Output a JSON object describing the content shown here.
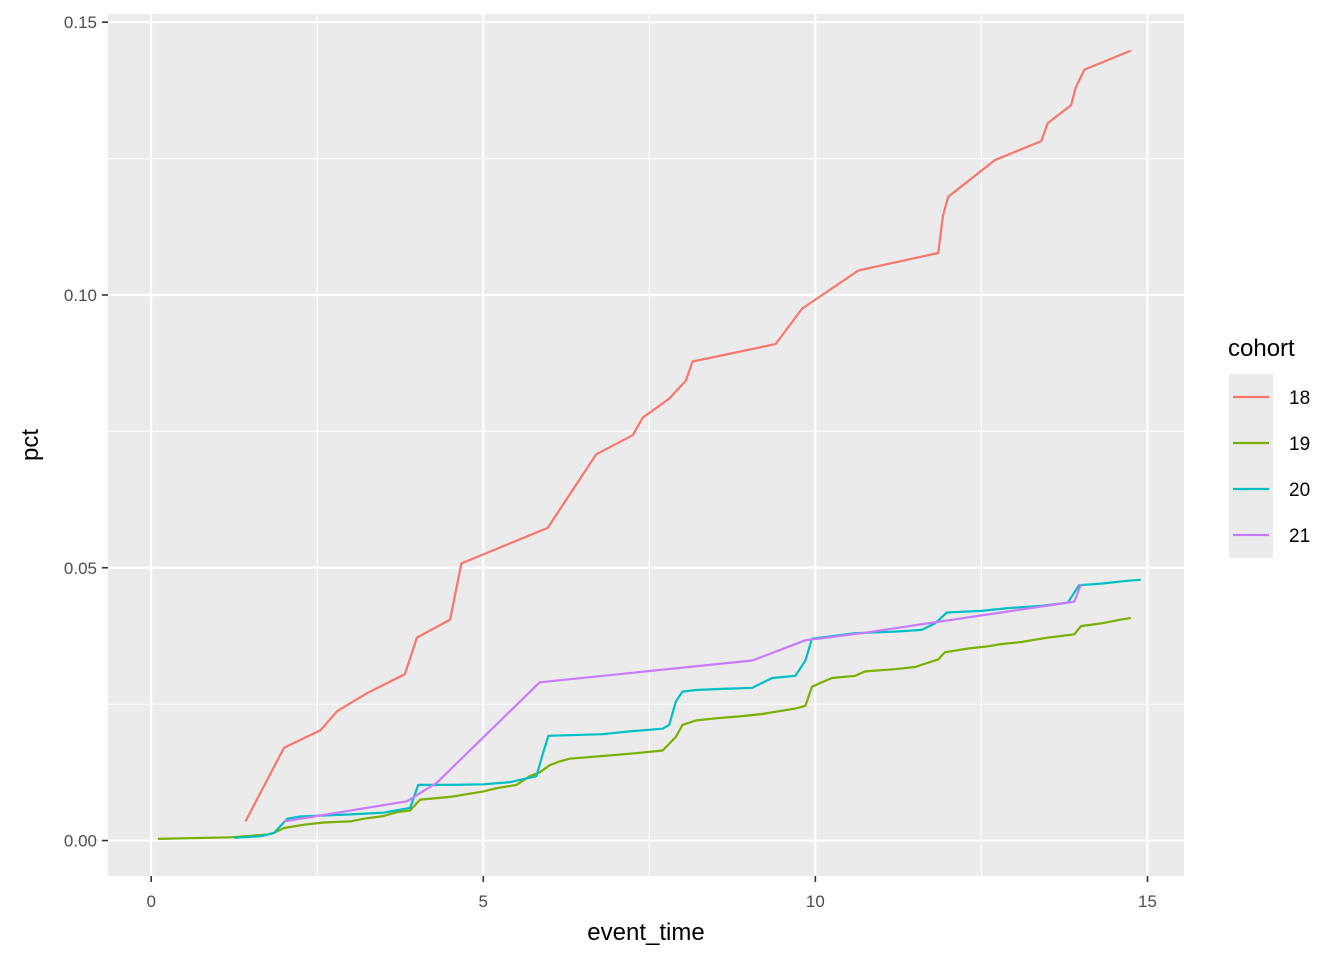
{
  "chart_data": {
    "type": "line",
    "xlabel": "event_time",
    "ylabel": "pct",
    "xlim": [
      -0.65,
      15.55
    ],
    "ylim": [
      -0.0065,
      0.1515
    ],
    "x_breaks": [
      0,
      5,
      10,
      15
    ],
    "x_tick_labels": [
      "0",
      "5",
      "10",
      "15"
    ],
    "x_minor_breaks": [
      2.5,
      7.5,
      12.5
    ],
    "y_breaks": [
      0,
      0.05,
      0.1,
      0.15
    ],
    "y_tick_labels": [
      "0.00",
      "0.05",
      "0.10",
      "0.15"
    ],
    "y_minor_breaks": [
      0.025,
      0.075,
      0.125
    ],
    "grid": true,
    "legend": {
      "title": "cohort",
      "placement": "right"
    },
    "series": [
      {
        "name": "18",
        "color": "#F8766D",
        "points": [
          [
            1.42,
            0.0035
          ],
          [
            2.0,
            0.017
          ],
          [
            2.55,
            0.0202
          ],
          [
            2.8,
            0.0237
          ],
          [
            3.25,
            0.027
          ],
          [
            3.82,
            0.0305
          ],
          [
            4.0,
            0.0372
          ],
          [
            4.5,
            0.0405
          ],
          [
            4.67,
            0.0508
          ],
          [
            5.97,
            0.0573
          ],
          [
            6.7,
            0.0708
          ],
          [
            7.25,
            0.0743
          ],
          [
            7.4,
            0.0775
          ],
          [
            7.8,
            0.081
          ],
          [
            8.05,
            0.0843
          ],
          [
            8.15,
            0.0878
          ],
          [
            9.4,
            0.091
          ],
          [
            9.8,
            0.0975
          ],
          [
            10.65,
            0.1045
          ],
          [
            11.85,
            0.1077
          ],
          [
            11.92,
            0.1145
          ],
          [
            12.0,
            0.118
          ],
          [
            12.7,
            0.1247
          ],
          [
            13.4,
            0.1282
          ],
          [
            13.5,
            0.1315
          ],
          [
            13.85,
            0.1348
          ],
          [
            13.92,
            0.138
          ],
          [
            14.05,
            0.1413
          ],
          [
            14.75,
            0.1448
          ]
        ]
      },
      {
        "name": "19",
        "color": "#7CAE00",
        "points": [
          [
            0.1,
            0.0003
          ],
          [
            1.2,
            0.0006
          ],
          [
            1.75,
            0.0011
          ],
          [
            1.85,
            0.0014
          ],
          [
            2.0,
            0.0023
          ],
          [
            2.3,
            0.0029
          ],
          [
            2.6,
            0.0033
          ],
          [
            3.0,
            0.0035
          ],
          [
            3.2,
            0.004
          ],
          [
            3.5,
            0.0045
          ],
          [
            3.7,
            0.0052
          ],
          [
            3.9,
            0.0055
          ],
          [
            3.95,
            0.0062
          ],
          [
            4.05,
            0.0075
          ],
          [
            4.5,
            0.008
          ],
          [
            4.75,
            0.0085
          ],
          [
            5.0,
            0.009
          ],
          [
            5.2,
            0.0096
          ],
          [
            5.5,
            0.0102
          ],
          [
            5.7,
            0.0118
          ],
          [
            5.85,
            0.0125
          ],
          [
            6.0,
            0.0138
          ],
          [
            6.15,
            0.0145
          ],
          [
            6.3,
            0.015
          ],
          [
            6.8,
            0.0155
          ],
          [
            7.3,
            0.016
          ],
          [
            7.7,
            0.0165
          ],
          [
            7.9,
            0.019
          ],
          [
            8.0,
            0.0212
          ],
          [
            8.2,
            0.022
          ],
          [
            8.5,
            0.0224
          ],
          [
            8.9,
            0.0228
          ],
          [
            9.2,
            0.0232
          ],
          [
            9.5,
            0.0238
          ],
          [
            9.7,
            0.0242
          ],
          [
            9.85,
            0.0247
          ],
          [
            9.95,
            0.0282
          ],
          [
            10.1,
            0.029
          ],
          [
            10.25,
            0.0298
          ],
          [
            10.6,
            0.0302
          ],
          [
            10.75,
            0.031
          ],
          [
            11.2,
            0.0314
          ],
          [
            11.5,
            0.0318
          ],
          [
            11.85,
            0.0332
          ],
          [
            11.95,
            0.0345
          ],
          [
            12.3,
            0.0352
          ],
          [
            12.6,
            0.0356
          ],
          [
            12.8,
            0.036
          ],
          [
            13.1,
            0.0364
          ],
          [
            13.5,
            0.0372
          ],
          [
            13.9,
            0.0378
          ],
          [
            14.0,
            0.0393
          ],
          [
            14.3,
            0.0398
          ],
          [
            14.6,
            0.0405
          ],
          [
            14.75,
            0.0408
          ]
        ]
      },
      {
        "name": "20",
        "color": "#00BFC4",
        "points": [
          [
            1.25,
            0.0005
          ],
          [
            1.65,
            0.0008
          ],
          [
            1.85,
            0.0014
          ],
          [
            2.05,
            0.004
          ],
          [
            2.25,
            0.0044
          ],
          [
            3.0,
            0.0048
          ],
          [
            3.5,
            0.0051
          ],
          [
            3.9,
            0.006
          ],
          [
            4.02,
            0.0102
          ],
          [
            4.5,
            0.0102
          ],
          [
            5.0,
            0.0103
          ],
          [
            5.4,
            0.0107
          ],
          [
            5.8,
            0.0118
          ],
          [
            5.9,
            0.016
          ],
          [
            5.98,
            0.0192
          ],
          [
            6.8,
            0.0195
          ],
          [
            7.2,
            0.02
          ],
          [
            7.7,
            0.0205
          ],
          [
            7.8,
            0.0212
          ],
          [
            7.9,
            0.0255
          ],
          [
            8.0,
            0.0273
          ],
          [
            8.2,
            0.0276
          ],
          [
            8.6,
            0.0278
          ],
          [
            9.05,
            0.028
          ],
          [
            9.35,
            0.0298
          ],
          [
            9.7,
            0.0302
          ],
          [
            9.85,
            0.033
          ],
          [
            9.95,
            0.037
          ],
          [
            10.6,
            0.038
          ],
          [
            11.2,
            0.0383
          ],
          [
            11.6,
            0.0386
          ],
          [
            11.8,
            0.0398
          ],
          [
            11.98,
            0.0418
          ],
          [
            12.5,
            0.0421
          ],
          [
            12.9,
            0.0426
          ],
          [
            13.4,
            0.043
          ],
          [
            13.8,
            0.0436
          ],
          [
            13.97,
            0.0468
          ],
          [
            14.3,
            0.0471
          ],
          [
            14.7,
            0.0476
          ],
          [
            14.9,
            0.0478
          ]
        ]
      },
      {
        "name": "21",
        "color": "#C77CFF",
        "points": [
          [
            2.0,
            0.0035
          ],
          [
            3.85,
            0.0072
          ],
          [
            4.3,
            0.0106
          ],
          [
            5.85,
            0.029
          ],
          [
            9.05,
            0.033
          ],
          [
            9.85,
            0.0367
          ],
          [
            10.75,
            0.0381
          ],
          [
            13.9,
            0.0438
          ],
          [
            14.0,
            0.047
          ]
        ]
      }
    ]
  }
}
